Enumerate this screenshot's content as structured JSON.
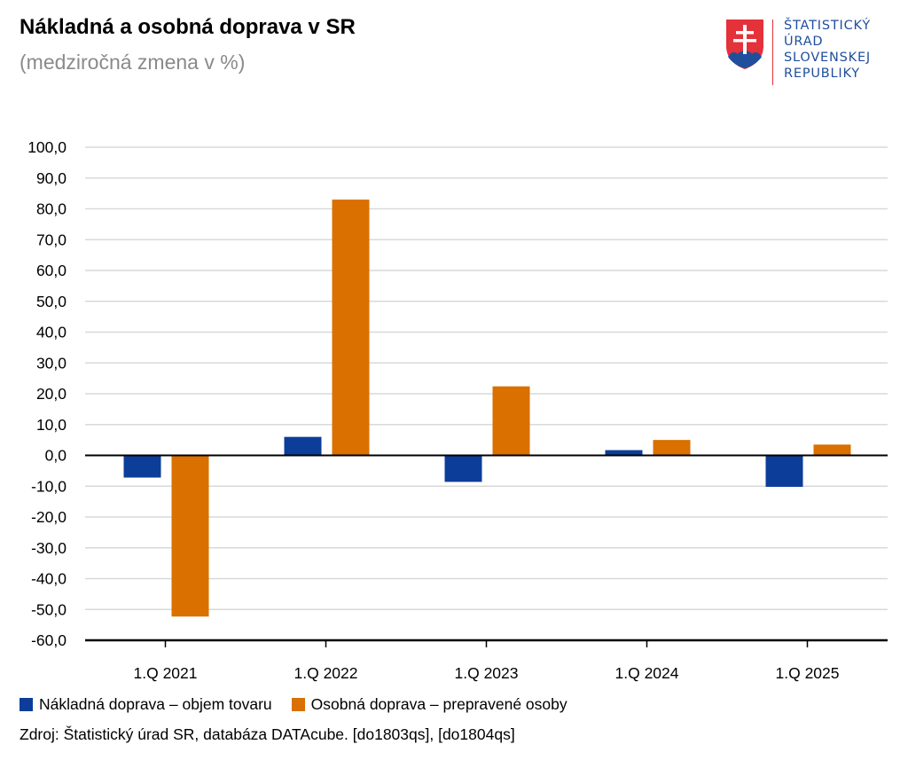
{
  "chart_data": {
    "type": "bar",
    "title": "Nákladná a osobná doprava v SR",
    "subtitle": "(medziročná zmena v %)",
    "categories": [
      "1.Q 2021",
      "1.Q 2022",
      "1.Q 2023",
      "1.Q 2024",
      "1.Q 2025"
    ],
    "series": [
      {
        "name": "Nákladná doprava – objem tovaru",
        "color": "#0b3d99",
        "values": [
          -7.2,
          6.0,
          -8.6,
          1.7,
          -10.2
        ]
      },
      {
        "name": "Osobná doprava – prepravené osoby",
        "color": "#d97000",
        "values": [
          -52.3,
          83.0,
          22.4,
          5.0,
          3.5
        ]
      }
    ],
    "ylim": [
      -60,
      100
    ],
    "ytick_step": 10,
    "ytick_labels": [
      "100,0",
      "90,0",
      "80,0",
      "70,0",
      "60,0",
      "50,0",
      "40,0",
      "30,0",
      "20,0",
      "10,0",
      "0,0",
      "-10,0",
      "-20,0",
      "-30,0",
      "-40,0",
      "-50,0",
      "-60,0"
    ],
    "grid": true,
    "legend_position": "bottom-left",
    "source": "Zdroj: Štatistický úrad SR, databáza DATAcube. [do1803qs], [do1804qs]"
  },
  "logo": {
    "lines": [
      "ŠTATISTICKÝ",
      "ÚRAD",
      "SLOVENSKEJ",
      "REPUBLIKY"
    ],
    "icon": "slovak-coat-of-arms-icon",
    "colors": {
      "shield": "#e4313a",
      "mount": "#1f4e9c",
      "cross": "#ffffff",
      "text": "#1f4e9c"
    }
  }
}
